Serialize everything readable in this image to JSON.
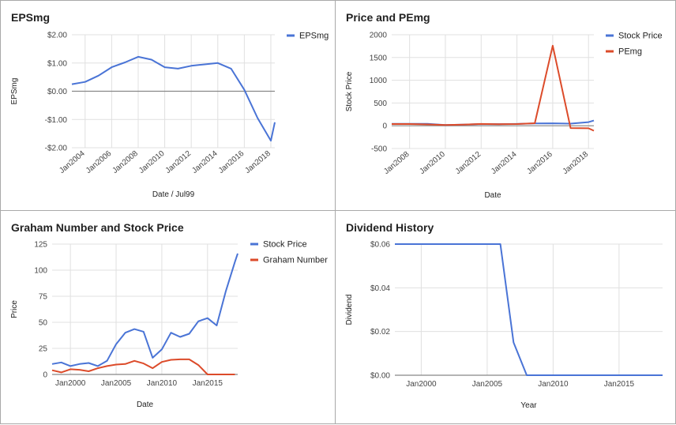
{
  "colors": {
    "blue": "#4a74d6",
    "red": "#dc4b2a",
    "grid": "#e0e0e0",
    "zero": "#888888"
  },
  "charts": [
    {
      "id": "p1",
      "type": "line",
      "title": "EPSmg",
      "xlabel": "Date / Jul99",
      "ylabel": "EPSmg",
      "xlim": [
        2003,
        2018.3
      ],
      "ylim": [
        -2,
        2
      ],
      "yticks": [
        2,
        1,
        0,
        -1,
        -2
      ],
      "ytick_labels": [
        "$2.00",
        "$1.00",
        "$0.00",
        "-$1.00",
        "-$2.00"
      ],
      "xticks": [
        2004,
        2006,
        2008,
        2010,
        2012,
        2014,
        2016,
        2018
      ],
      "xtick_labels": [
        "Jan2004",
        "Jan2006",
        "Jan2008",
        "Jan2010",
        "Jan2012",
        "Jan2014",
        "Jan2016",
        "Jan2018"
      ],
      "rotate_xticks": true,
      "zero_line": true,
      "legend": [
        "EPSmg"
      ],
      "series": [
        {
          "name": "EPSmg",
          "color": "#4a74d6",
          "x": [
            2003.0,
            2004.0,
            2005.0,
            2006.0,
            2007.0,
            2008.0,
            2009.0,
            2010.0,
            2011.0,
            2012.0,
            2013.0,
            2014.0,
            2015.0,
            2016.0,
            2017.0,
            2018.0,
            2018.3
          ],
          "y": [
            0.25,
            0.33,
            0.55,
            0.85,
            1.02,
            1.22,
            1.12,
            0.85,
            0.8,
            0.9,
            0.95,
            1.0,
            0.8,
            0.05,
            -0.95,
            -1.75,
            -1.1
          ]
        }
      ]
    },
    {
      "id": "p2",
      "type": "line",
      "title": "Price and PEmg",
      "xlabel": "Date",
      "ylabel": "Stock Price",
      "xlim": [
        2007,
        2018.3
      ],
      "ylim": [
        -500,
        2000
      ],
      "yticks": [
        2000,
        1500,
        1000,
        500,
        0,
        -500
      ],
      "ytick_labels": [
        "2000",
        "1500",
        "1000",
        "500",
        "0",
        "-500"
      ],
      "xticks": [
        2008,
        2010,
        2012,
        2014,
        2016,
        2018
      ],
      "xtick_labels": [
        "Jan2008",
        "Jan2010",
        "Jan2012",
        "Jan2014",
        "Jan2016",
        "Jan2018"
      ],
      "rotate_xticks": true,
      "zero_line": true,
      "legend": [
        "Stock Price",
        "PEmg"
      ],
      "series": [
        {
          "name": "Stock Price",
          "color": "#4a74d6",
          "x": [
            2007.0,
            2008.0,
            2009.0,
            2010.0,
            2011.0,
            2012.0,
            2013.0,
            2014.0,
            2015.0,
            2016.0,
            2017.0,
            2018.0,
            2018.3
          ],
          "y": [
            42,
            44,
            42,
            18,
            24,
            38,
            36,
            40,
            50,
            54,
            47,
            80,
            115
          ]
        },
        {
          "name": "PEmg",
          "color": "#dc4b2a",
          "x": [
            2007.0,
            2008.0,
            2009.0,
            2010.0,
            2011.0,
            2012.0,
            2013.0,
            2014.0,
            2015.0,
            2016.0,
            2017.0,
            2018.0,
            2018.3
          ],
          "y": [
            38,
            38,
            30,
            15,
            25,
            40,
            35,
            38,
            55,
            1760,
            -50,
            -55,
            -110
          ]
        }
      ]
    },
    {
      "id": "p3",
      "type": "line",
      "title": "Graham Number and Stock Price",
      "xlabel": "Date",
      "ylabel": "Price",
      "xlim": [
        1998,
        2018.3
      ],
      "ylim": [
        0,
        125
      ],
      "yticks": [
        125,
        100,
        75,
        50,
        25,
        0
      ],
      "ytick_labels": [
        "125",
        "100",
        "75",
        "50",
        "25",
        "0"
      ],
      "xticks": [
        2000,
        2005,
        2010,
        2015
      ],
      "xtick_labels": [
        "Jan2000",
        "Jan2005",
        "Jan2010",
        "Jan2015"
      ],
      "rotate_xticks": false,
      "zero_line": true,
      "legend": [
        "Stock Price",
        "Graham Number"
      ],
      "series": [
        {
          "name": "Stock Price",
          "color": "#4a74d6",
          "x": [
            1998.0,
            1999.0,
            2000.0,
            2001.0,
            2002.0,
            2003.0,
            2004.0,
            2005.0,
            2006.0,
            2007.0,
            2008.0,
            2009.0,
            2010.0,
            2011.0,
            2012.0,
            2013.0,
            2014.0,
            2015.0,
            2016.0,
            2017.0,
            2018.0,
            2018.3
          ],
          "y": [
            10,
            11.5,
            8,
            10,
            11,
            8,
            13,
            29,
            40,
            43.5,
            41,
            16,
            24,
            40,
            36,
            39,
            51,
            54,
            47,
            80,
            108,
            116
          ]
        },
        {
          "name": "Graham Number",
          "color": "#dc4b2a",
          "x": [
            1998.0,
            1999.0,
            2000.0,
            2001.0,
            2002.0,
            2003.0,
            2004.0,
            2005.0,
            2006.0,
            2007.0,
            2008.0,
            2009.0,
            2010.0,
            2011.0,
            2012.0,
            2013.0,
            2014.0,
            2015.0,
            2016.0,
            2017.0,
            2018.0
          ],
          "y": [
            4,
            2,
            5,
            4.5,
            3,
            6,
            8,
            9.5,
            10,
            13,
            10.5,
            6,
            12,
            14,
            14.5,
            14.5,
            9,
            0,
            0,
            0,
            0
          ]
        }
      ]
    },
    {
      "id": "p4",
      "type": "line",
      "title": "Dividend History",
      "xlabel": "Year",
      "ylabel": "Dividend",
      "xlim": [
        1998,
        2018.3
      ],
      "ylim": [
        0,
        0.06
      ],
      "yticks": [
        0.06,
        0.04,
        0.02,
        0
      ],
      "ytick_labels": [
        "$0.06",
        "$0.04",
        "$0.02",
        "$0.00"
      ],
      "xticks": [
        2000,
        2005,
        2010,
        2015
      ],
      "xtick_labels": [
        "Jan2000",
        "Jan2005",
        "Jan2010",
        "Jan2015"
      ],
      "rotate_xticks": false,
      "zero_line": true,
      "legend": [],
      "series": [
        {
          "name": "",
          "color": "#4a74d6",
          "x": [
            1998.0,
            2006.0,
            2007.0,
            2008.0,
            2009.0,
            2018.3
          ],
          "y": [
            0.06,
            0.06,
            0.015,
            0,
            0,
            0
          ]
        }
      ]
    }
  ]
}
